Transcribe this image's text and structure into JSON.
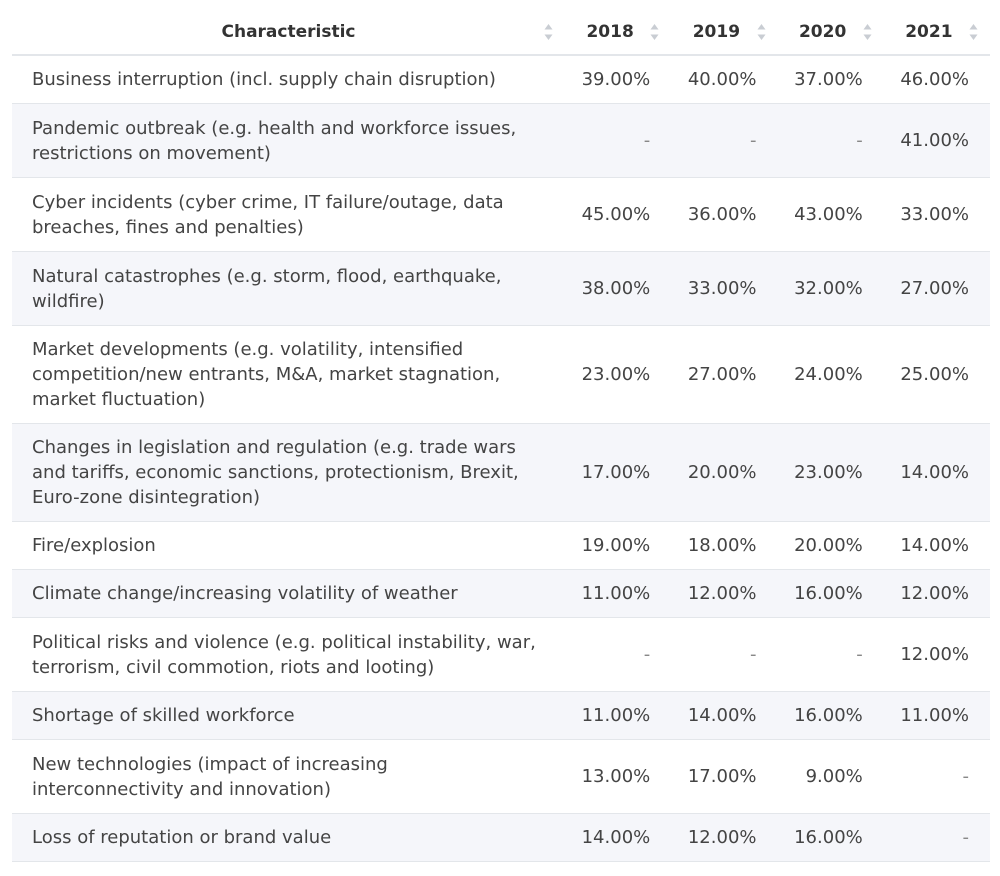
{
  "chart_data": {
    "type": "table",
    "columns": [
      "Characteristic",
      "2018",
      "2019",
      "2020",
      "2021"
    ],
    "rows": [
      {
        "label": "Business interruption (incl. supply chain disruption)",
        "values": [
          "39.00%",
          "40.00%",
          "37.00%",
          "46.00%"
        ]
      },
      {
        "label": "Pandemic outbreak (e.g. health and workforce issues, restrictions on movement)",
        "values": [
          "-",
          "-",
          "-",
          "41.00%"
        ]
      },
      {
        "label": "Cyber incidents (cyber crime, IT failure/outage, data breaches, fines and penalties)",
        "values": [
          "45.00%",
          "36.00%",
          "43.00%",
          "33.00%"
        ]
      },
      {
        "label": "Natural catastrophes (e.g. storm, flood, earthquake, wildfire)",
        "values": [
          "38.00%",
          "33.00%",
          "32.00%",
          "27.00%"
        ]
      },
      {
        "label": "Market developments (e.g. volatility, intensified competition/new entrants, M&A, market stagnation, market fluctuation)",
        "values": [
          "23.00%",
          "27.00%",
          "24.00%",
          "25.00%"
        ]
      },
      {
        "label": "Changes in legislation and regulation (e.g. trade wars and tariffs, economic sanctions, protectionism, Brexit, Euro-zone disintegration)",
        "values": [
          "17.00%",
          "20.00%",
          "23.00%",
          "14.00%"
        ]
      },
      {
        "label": "Fire/explosion",
        "values": [
          "19.00%",
          "18.00%",
          "20.00%",
          "14.00%"
        ]
      },
      {
        "label": "Climate change/increasing volatility of weather",
        "values": [
          "11.00%",
          "12.00%",
          "16.00%",
          "12.00%"
        ]
      },
      {
        "label": "Political risks and violence (e.g. political instability, war, terrorism, civil commotion, riots and looting)",
        "values": [
          "-",
          "-",
          "-",
          "12.00%"
        ]
      },
      {
        "label": "Shortage of skilled workforce",
        "values": [
          "11.00%",
          "14.00%",
          "16.00%",
          "11.00%"
        ]
      },
      {
        "label": "New technologies (impact of increasing interconnectivity and innovation)",
        "values": [
          "13.00%",
          "17.00%",
          "9.00%",
          "-"
        ]
      },
      {
        "label": "Loss of reputation or brand value",
        "values": [
          "14.00%",
          "12.00%",
          "16.00%",
          "-"
        ]
      }
    ]
  }
}
